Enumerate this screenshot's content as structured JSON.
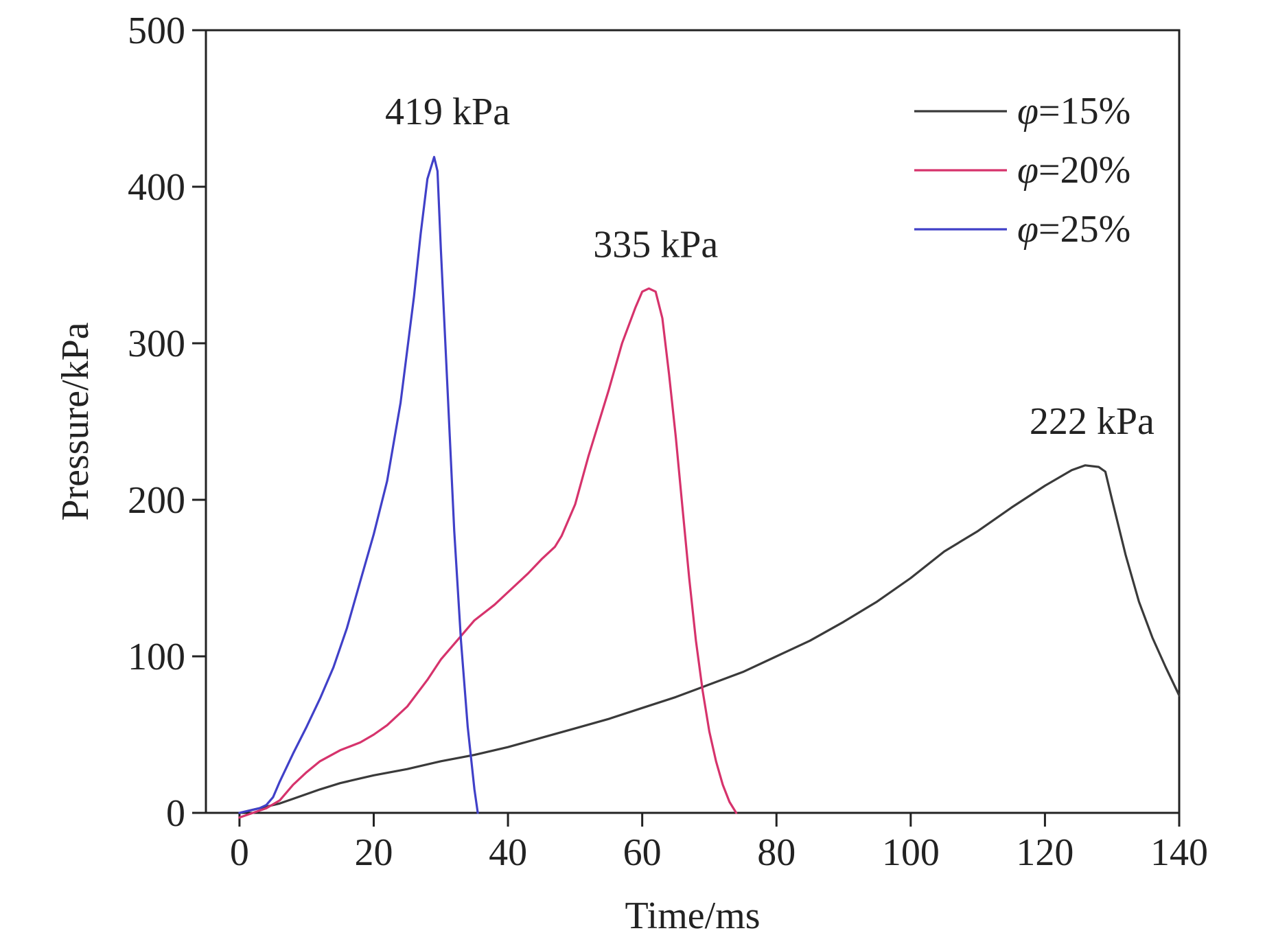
{
  "chart_data": {
    "type": "line",
    "title": "",
    "xlabel": "Time/ms",
    "ylabel": "Pressure/kPa",
    "xlim": [
      -5,
      140
    ],
    "ylim": [
      0,
      500
    ],
    "xticks": [
      0,
      20,
      40,
      60,
      80,
      100,
      120,
      140
    ],
    "yticks": [
      0,
      100,
      200,
      300,
      400,
      500
    ],
    "grid": false,
    "legend_position": "top-right",
    "series": [
      {
        "name": "φ=15%",
        "legend_symbol": "φ",
        "legend_text": "=15%",
        "color": "#3a3a3a",
        "x": [
          0,
          2,
          4,
          6,
          8,
          10,
          12,
          15,
          18,
          20,
          25,
          30,
          35,
          40,
          45,
          50,
          55,
          60,
          65,
          70,
          75,
          80,
          85,
          90,
          95,
          100,
          105,
          110,
          115,
          120,
          124,
          126,
          128,
          129,
          130,
          132,
          134,
          136,
          138,
          140
        ],
        "y": [
          0,
          2,
          4,
          6,
          9,
          12,
          15,
          19,
          22,
          24,
          28,
          33,
          37,
          42,
          48,
          54,
          60,
          67,
          74,
          82,
          90,
          100,
          110,
          122,
          135,
          150,
          167,
          180,
          195,
          209,
          219,
          222,
          221,
          218,
          200,
          165,
          135,
          112,
          93,
          75
        ]
      },
      {
        "name": "φ=20%",
        "legend_symbol": "φ",
        "legend_text": "=20%",
        "color": "#d6336c",
        "x": [
          0,
          2,
          4,
          6,
          8,
          10,
          12,
          15,
          18,
          20,
          22,
          25,
          28,
          30,
          33,
          35,
          38,
          40,
          43,
          45,
          47,
          48,
          50,
          52,
          55,
          57,
          59,
          60,
          61,
          62,
          63,
          64,
          65,
          66,
          67,
          68,
          69,
          70,
          71,
          72,
          73,
          74
        ],
        "y": [
          -3,
          0,
          3,
          8,
          18,
          26,
          33,
          40,
          45,
          50,
          56,
          68,
          85,
          98,
          113,
          123,
          133,
          141,
          153,
          162,
          170,
          177,
          197,
          228,
          270,
          300,
          323,
          333,
          335,
          333,
          316,
          280,
          240,
          195,
          150,
          110,
          78,
          52,
          33,
          18,
          7,
          0
        ]
      },
      {
        "name": "φ=25%",
        "legend_symbol": "φ",
        "legend_text": "=25%",
        "color": "#4040c8",
        "x": [
          0,
          2,
          3,
          4,
          5,
          6,
          8,
          10,
          12,
          14,
          16,
          18,
          20,
          22,
          24,
          26,
          27,
          28,
          28.5,
          29,
          29.5,
          30,
          31,
          32,
          33,
          34,
          35,
          35.5
        ],
        "y": [
          0,
          2,
          3,
          5,
          10,
          20,
          38,
          55,
          73,
          93,
          118,
          148,
          178,
          212,
          262,
          330,
          370,
          405,
          412,
          419,
          410,
          360,
          270,
          180,
          110,
          55,
          15,
          0
        ]
      }
    ],
    "annotations": [
      {
        "text": "419 kPa",
        "x": 31,
        "y": 440
      },
      {
        "text": "335 kPa",
        "x": 62,
        "y": 355
      },
      {
        "text": "222 kPa",
        "x": 127,
        "y": 242
      }
    ]
  }
}
